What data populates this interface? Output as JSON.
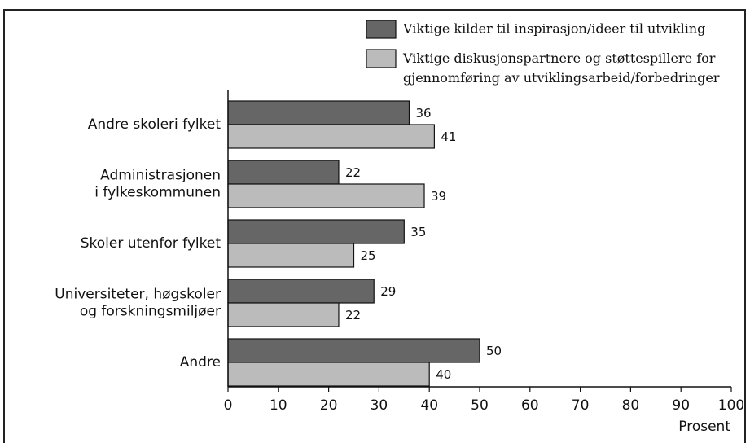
{
  "chart_data": {
    "type": "bar",
    "orientation": "horizontal",
    "categories": [
      "Andre skoleri fylket",
      "Administrasjonen\ni fylkeskommunen",
      "Skoler utenfor fylket",
      "Universiteter, høgskoler\nog forskningsmiljøer",
      "Andre"
    ],
    "series": [
      {
        "name": "Viktige kilder til inspirasjon/ideer til utvikling",
        "color": "#666666",
        "values": [
          36,
          22,
          35,
          29,
          50
        ]
      },
      {
        "name": "Viktige diskusjonspartnere og støttespillere for\ngjennomføring av utviklingsarbeid/forbedringer",
        "color": "#bbbbbb",
        "values": [
          41,
          39,
          25,
          22,
          40
        ]
      }
    ],
    "xlim": [
      0,
      100
    ],
    "xticks": [
      0,
      10,
      20,
      30,
      40,
      50,
      60,
      70,
      80,
      90,
      100
    ],
    "xlabel": "Prosent",
    "legend": "upper right"
  }
}
